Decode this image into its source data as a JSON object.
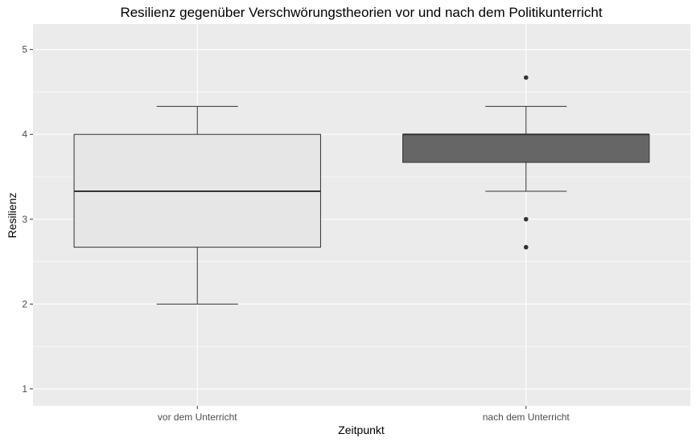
{
  "chart_data": {
    "type": "boxplot",
    "title": "Resilienz gegenüber Verschwörungstheorien vor und nach dem Politikunterricht",
    "xlabel": "Zeitpunkt",
    "ylabel": "Resilienz",
    "ylim": [
      0.8,
      5.3
    ],
    "yticks": [
      "1",
      "2",
      "3",
      "4",
      "5"
    ],
    "grid": true,
    "categories": [
      "vor dem Unterricht",
      "nach dem Unterricht"
    ],
    "boxes": [
      {
        "whisker_low": 2.0,
        "q1": 2.67,
        "median": 3.33,
        "q3": 4.0,
        "whisker_high": 4.33,
        "outliers": [],
        "fill": "#e6e6e6"
      },
      {
        "whisker_low": 3.33,
        "q1": 3.67,
        "median": 4.0,
        "q3": 4.0,
        "whisker_high": 4.33,
        "outliers": [
          4.67,
          3.0,
          2.67
        ],
        "fill": "#666666"
      }
    ],
    "colors": {
      "panel": "#ebebeb",
      "grid": "#ffffff",
      "box_line": "#333333",
      "outlier": "#333333"
    }
  }
}
